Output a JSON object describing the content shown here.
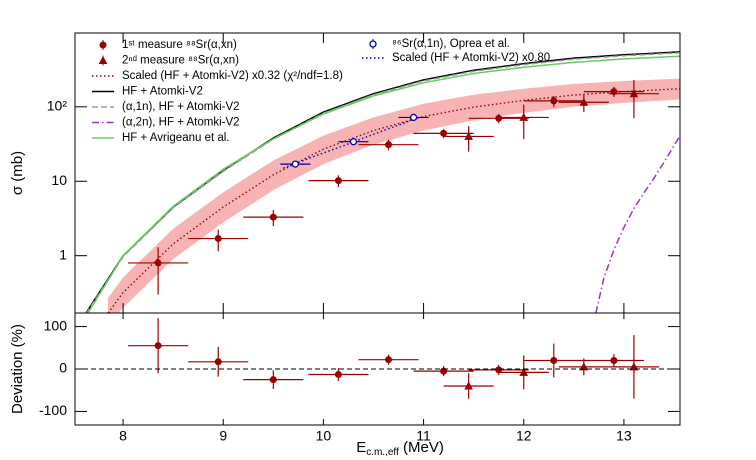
{
  "chart_data": [
    {
      "type": "scatter",
      "ylabel": "σ (mb)",
      "log_y": true,
      "xlim": [
        7.52,
        13.56
      ],
      "xticks": [
        8,
        9,
        10,
        11,
        12,
        13
      ],
      "ylim": [
        0.17,
        980
      ],
      "yticks": [
        1,
        10,
        {
          "value": 100,
          "label": "10²"
        }
      ],
      "series": [
        {
          "name": "1ˢᵗ measure ⁸⁸Sr(α,xn)",
          "style": "points",
          "marker": "circle",
          "color": "#990000",
          "x": [
            8.35,
            8.95,
            9.5,
            10.15,
            10.65,
            11.2,
            11.75,
            12.3,
            12.9
          ],
          "values": [
            0.8,
            1.7,
            3.3,
            10.2,
            31,
            44,
            70,
            120,
            160
          ],
          "xerr": [
            0.3,
            0.3,
            0.3,
            0.3,
            0.3,
            0.3,
            0.3,
            0.3,
            0.3
          ],
          "yerr": [
            0.5,
            0.55,
            0.8,
            1.8,
            5,
            6,
            10,
            20,
            25
          ]
        },
        {
          "name": "2ⁿᵈ measure ⁸⁸Sr(α,xn)",
          "style": "points",
          "marker": "triangle",
          "color": "#990000",
          "x": [
            11.45,
            12.0,
            12.6,
            13.1
          ],
          "values": [
            40,
            72,
            115,
            150
          ],
          "xerr": [
            0.25,
            0.25,
            0.25,
            0.25
          ],
          "yerr": [
            15,
            35,
            30,
            80
          ]
        },
        {
          "name": "Scaled (HF + Atomki-V2) x0.32 (χ²/ndf=1.8)",
          "style": "line",
          "dash": "dotted",
          "color": "#990000",
          "band_color": "#f8b4b4",
          "x": [
            7.85,
            8,
            8.5,
            9,
            9.5,
            10,
            10.5,
            11,
            11.5,
            12,
            12.5,
            13,
            13.6
          ],
          "values": [
            0.17,
            0.32,
            1.44,
            4.5,
            12.2,
            27,
            48,
            74,
            99,
            122,
            144,
            160,
            176
          ],
          "band_low": [
            0.105,
            0.2,
            0.9,
            2.8,
            7.6,
            17,
            31,
            48,
            66,
            83,
            100,
            113,
            126
          ],
          "band_high": [
            0.27,
            0.51,
            2.3,
            7.1,
            19,
            41,
            72,
            110,
            145,
            175,
            203,
            222,
            240
          ]
        },
        {
          "name": "HF + Atomki-V2",
          "style": "line",
          "dash": "solid",
          "color": "#000000",
          "x": [
            7.63,
            8,
            8.5,
            9,
            9.5,
            10,
            10.5,
            11,
            11.5,
            12,
            12.5,
            13,
            13.6
          ],
          "values": [
            0.17,
            1.0,
            4.5,
            14,
            38,
            85,
            150,
            230,
            310,
            380,
            450,
            500,
            550
          ]
        },
        {
          "name": "(α,1n), HF + Atomki-V2",
          "style": "line",
          "dash": "dashed",
          "color": "#999999",
          "x": [
            7.63,
            8,
            8.5,
            9,
            9.5,
            10,
            10.5,
            11,
            11.5,
            12,
            12.5,
            13,
            13.6
          ],
          "values": [
            0.165,
            0.97,
            4.4,
            13.6,
            37,
            82,
            145,
            223,
            300,
            368,
            436,
            485,
            535
          ]
        },
        {
          "name": "(α,2n), HF + Atomki-V2",
          "style": "line",
          "dash": "dashdot",
          "color": "#9933cc",
          "x": [
            12.72,
            12.8,
            12.9,
            13.0,
            13.1,
            13.2,
            13.3,
            13.4,
            13.5,
            13.6
          ],
          "values": [
            0.17,
            0.5,
            1.2,
            2.4,
            4.3,
            7,
            11,
            18,
            30,
            50
          ]
        },
        {
          "name": "HF + Avrigeanu et al.",
          "style": "line",
          "dash": "solid",
          "color": "#66cc66",
          "x": [
            7.65,
            8,
            8.5,
            9,
            9.5,
            10,
            10.5,
            11,
            11.5,
            12,
            12.5,
            13,
            13.6
          ],
          "values": [
            0.17,
            1.0,
            4.6,
            14.5,
            37,
            80,
            140,
            210,
            280,
            340,
            395,
            440,
            480
          ]
        },
        {
          "name": "⁸⁶Sr(α,1n), Oprea et al.",
          "style": "points",
          "marker": "open-circle",
          "color": "#000099",
          "x": [
            9.72,
            10.3,
            10.9
          ],
          "values": [
            17,
            34,
            72
          ],
          "xerr": [
            0.15,
            0.15,
            0.15
          ]
        },
        {
          "name": "Scaled (HF + Atomki-V2) x0.80",
          "style": "line",
          "dash": "dotted",
          "color": "#0000cc",
          "x": [
            9.6,
            9.8,
            10,
            10.2,
            10.4,
            10.6,
            10.8,
            10.9
          ],
          "values": [
            15,
            19,
            24,
            30,
            38,
            48,
            60,
            68
          ]
        }
      ]
    },
    {
      "type": "scatter",
      "ylabel": "Deviation (%)",
      "xlabel": {
        "main": "E",
        "sub": "c.m.,eff",
        "unit": " (MeV)"
      },
      "xlim": [
        7.52,
        13.56
      ],
      "xticks": [
        8,
        9,
        10,
        11,
        12,
        13
      ],
      "ylim": [
        -132,
        132
      ],
      "yticks": [
        -100,
        0,
        100
      ],
      "hline": 0,
      "series": [
        {
          "marker": "circle",
          "color": "#990000",
          "x": [
            8.35,
            8.95,
            9.5,
            10.15,
            10.65,
            11.2,
            11.75,
            12.3,
            12.9
          ],
          "values": [
            55,
            17,
            -25,
            -13,
            22,
            -5,
            -2,
            20,
            20
          ],
          "xerr": [
            0.3,
            0.3,
            0.3,
            0.3,
            0.3,
            0.3,
            0.3,
            0.3,
            0.3
          ],
          "yerr": [
            65,
            35,
            22,
            15,
            12,
            12,
            12,
            40,
            15
          ]
        },
        {
          "marker": "triangle",
          "color": "#990000",
          "x": [
            11.45,
            12.0,
            12.6,
            13.1
          ],
          "values": [
            -40,
            -8,
            5,
            5
          ],
          "xerr": [
            0.25,
            0.25,
            0.25,
            0.25
          ],
          "yerr": [
            30,
            40,
            20,
            75
          ]
        }
      ]
    }
  ]
}
